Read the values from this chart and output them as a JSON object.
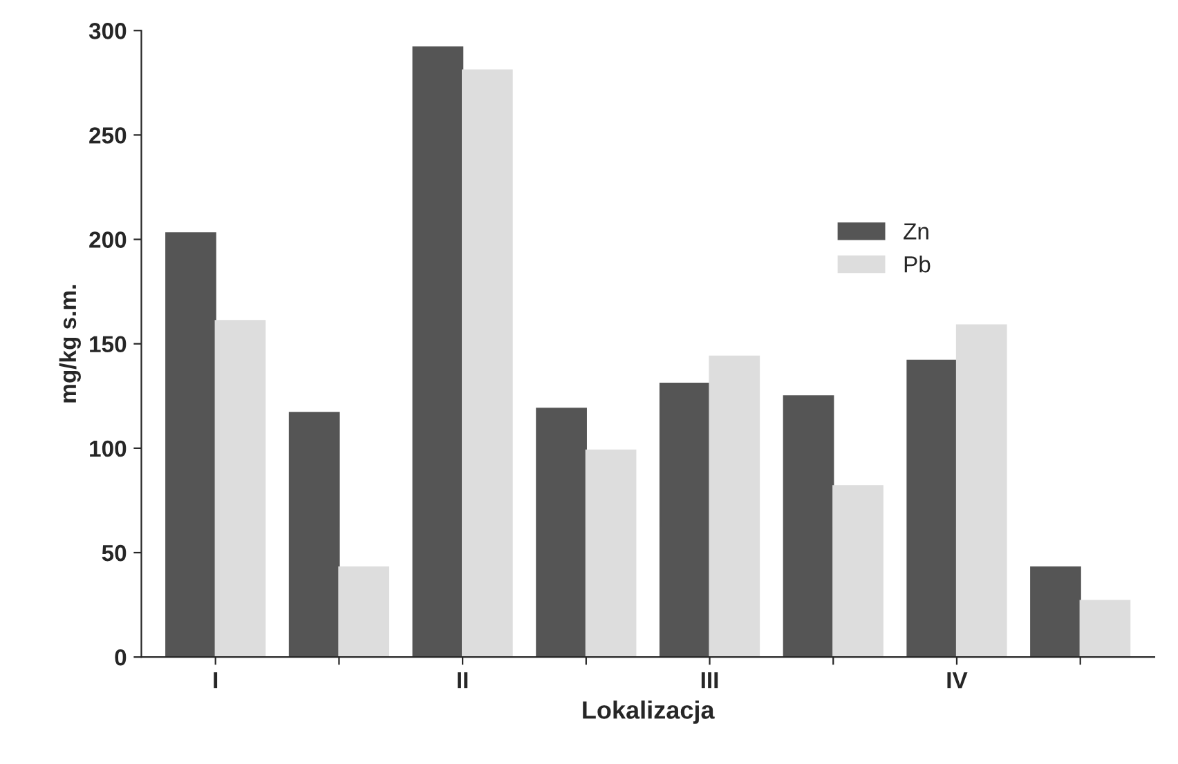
{
  "chart_data": {
    "type": "bar",
    "xlabel": "Lokalizacja",
    "ylabel": "mg/kg s.m.",
    "categories": [
      "I",
      null,
      "II",
      null,
      "III",
      null,
      "IV",
      null
    ],
    "series": [
      {
        "name": "Zn",
        "color": "#555555",
        "values": [
          203,
          117,
          292,
          119,
          131,
          125,
          142,
          43
        ]
      },
      {
        "name": "Pb",
        "color": "#dddddd",
        "values": [
          161,
          43,
          281,
          99,
          144,
          82,
          159,
          27
        ]
      }
    ],
    "ylim": [
      0,
      300
    ],
    "yticks": [
      0,
      50,
      100,
      150,
      200,
      250,
      300
    ],
    "legend": "right",
    "grid": false
  }
}
